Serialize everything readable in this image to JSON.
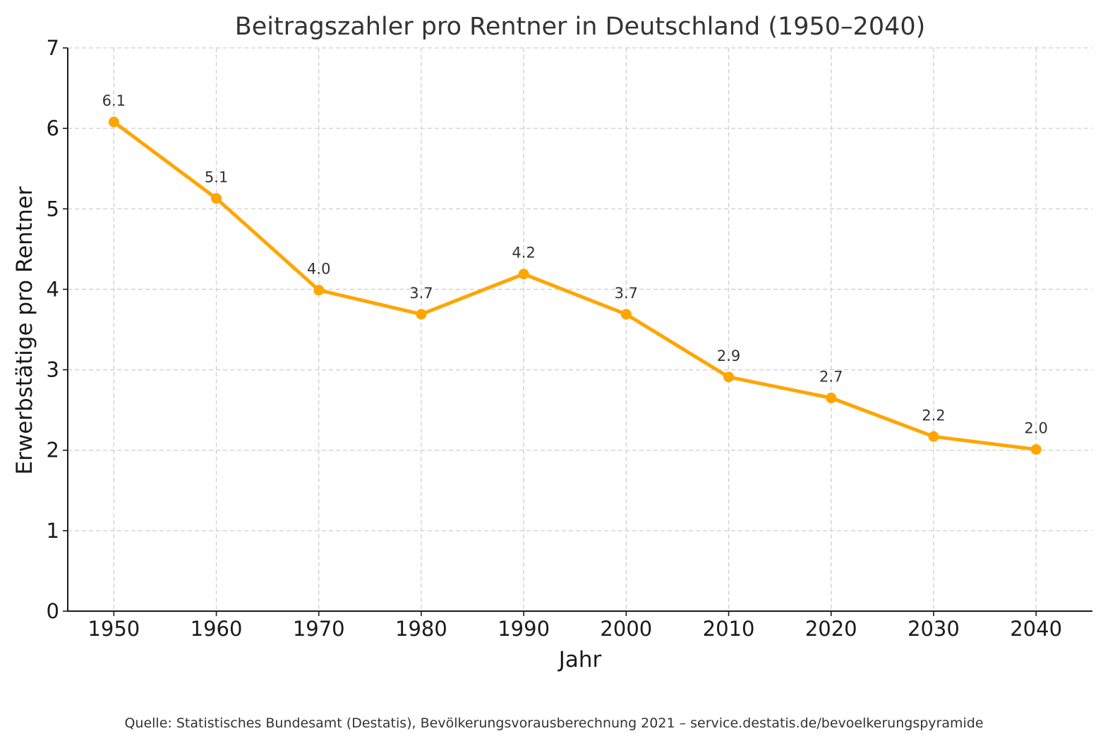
{
  "chart_data": {
    "type": "line",
    "title": "Beitragszahler pro Rentner in Deutschland (1950–2040)",
    "xlabel": "Jahr",
    "ylabel": "Erwerbstätige pro Rentner",
    "x": [
      1950,
      1960,
      1970,
      1980,
      1990,
      2000,
      2010,
      2020,
      2030,
      2040
    ],
    "x_tick_labels": [
      "1950",
      "1960",
      "1970",
      "1980",
      "1990",
      "2000",
      "2010",
      "2020",
      "2030",
      "2040"
    ],
    "y_ticks": [
      0,
      1,
      2,
      3,
      4,
      5,
      6,
      7
    ],
    "y_tick_labels": [
      "0",
      "1",
      "2",
      "3",
      "4",
      "5",
      "6",
      "7"
    ],
    "xlim": [
      1945.5,
      2045.5
    ],
    "ylim": [
      0,
      7
    ],
    "grid": true,
    "series": [
      {
        "values": [
          6.08,
          5.13,
          3.99,
          3.69,
          4.19,
          3.69,
          2.91,
          2.65,
          2.17,
          2.01
        ],
        "data_labels": [
          "6.1",
          "5.1",
          "4.0",
          "3.7",
          "4.2",
          "3.7",
          "2.9",
          "2.7",
          "2.2",
          "2.0"
        ],
        "color": "#FFA500"
      }
    ],
    "source": "Quelle: Statistisches Bundesamt (Destatis), Bevölkerungsvorausberechnung 2021 – service.destatis.de/bevoelkerungspyramide"
  }
}
